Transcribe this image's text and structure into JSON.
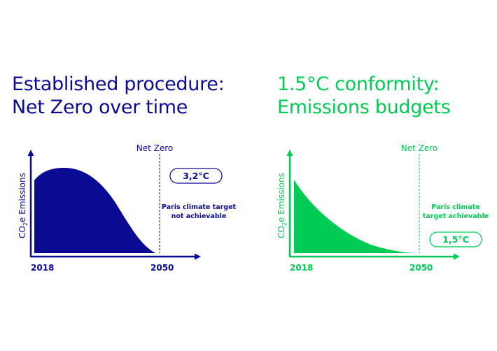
{
  "colors": {
    "navy": "#0b0b92",
    "green": "#00cc55"
  },
  "left": {
    "title_line1": "Established procedure:",
    "title_line2": "Net Zero over time",
    "net_zero_label": "Net Zero",
    "y_axis_label_prefix": "CO",
    "y_axis_label_sub": "2",
    "y_axis_label_suffix": "e Emissions",
    "x_start": "2018",
    "x_end": "2050",
    "badge": "3,2°C",
    "note_line1": "Paris climate target",
    "note_line2": "not achievable"
  },
  "right": {
    "title_line1": "1.5°C conformity:",
    "title_line2": "Emissions budgets",
    "net_zero_label": "Net Zero",
    "y_axis_label_prefix": "CO",
    "y_axis_label_sub": "2",
    "y_axis_label_suffix": "e Emissions",
    "x_start": "2018",
    "x_end": "2050",
    "badge": "1,5°C",
    "note_line1": "Paris climate",
    "note_line2": "target achievable"
  }
}
